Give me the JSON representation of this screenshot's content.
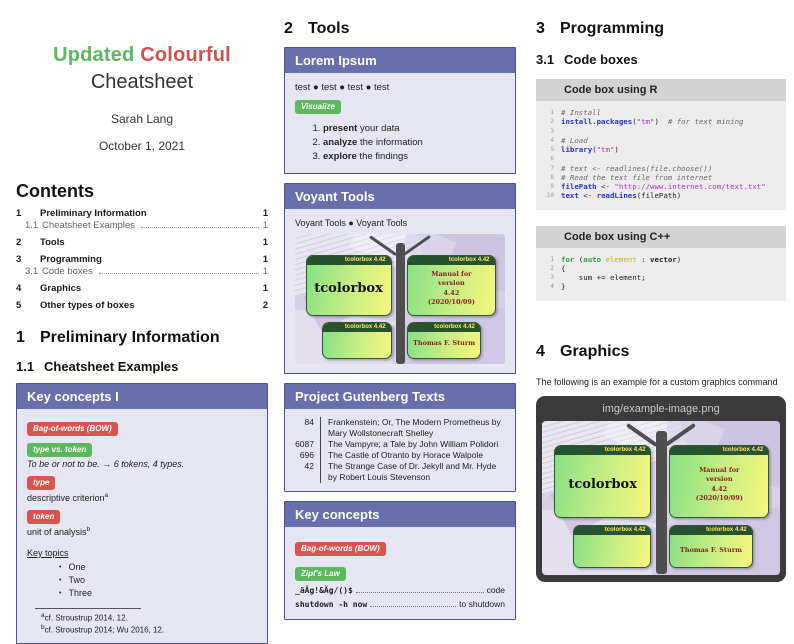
{
  "left": {
    "title": {
      "word1": "Updated",
      "word2": "Colourful",
      "line2": "Cheatsheet",
      "author": "Sarah Lang",
      "date": "October 1, 2021"
    },
    "contents": {
      "heading": "Contents",
      "entries": [
        {
          "num": "1",
          "label": "Preliminary Information",
          "page": "1",
          "level": 1
        },
        {
          "num": "1.1",
          "label": "Cheatsheet Examples",
          "page": "1",
          "level": 2
        },
        {
          "num": "2",
          "label": "Tools",
          "page": "1",
          "level": 1
        },
        {
          "num": "3",
          "label": "Programming",
          "page": "1",
          "level": 1
        },
        {
          "num": "3.1",
          "label": "Code boxes",
          "page": "1",
          "level": 2
        },
        {
          "num": "4",
          "label": "Graphics",
          "page": "1",
          "level": 1
        },
        {
          "num": "5",
          "label": "Other types of boxes",
          "page": "2",
          "level": 1
        }
      ]
    },
    "section": {
      "num": "1",
      "title": "Preliminary Information"
    },
    "subsection": {
      "num": "1.1",
      "title": "Cheatsheet Examples"
    },
    "key_concepts": {
      "title": "Key concepts I",
      "terms": [
        {
          "label": "Bag-of-words (BOW)",
          "color": "red",
          "desc": "",
          "italic": false,
          "sup": ""
        },
        {
          "label": "type vs. token",
          "color": "green",
          "desc": "To be or not to be. → 6 tokens, 4 types.",
          "italic": true,
          "sup": ""
        },
        {
          "label": "type",
          "color": "red",
          "desc": "descriptive criterion",
          "italic": false,
          "sup": "a"
        },
        {
          "label": "token",
          "color": "red",
          "desc": "unit of analysis",
          "italic": false,
          "sup": "b"
        }
      ],
      "topics_label": "Key topics",
      "topics": [
        "One",
        "Two",
        "Three"
      ],
      "footnotes": [
        {
          "sup": "a",
          "text": "cf. Stroustrup 2014, 12."
        },
        {
          "sup": "b",
          "text": "cf. Stroustrup 2014; Wu 2016, 12."
        }
      ]
    }
  },
  "middle": {
    "section": {
      "num": "2",
      "title": "Tools"
    },
    "lorem": {
      "title": "Lorem Ipsum",
      "test_line": "test ● test ● test ● test",
      "badge": "Visualize",
      "steps": [
        {
          "lead": "present",
          "rest": " your data"
        },
        {
          "lead": "analyze",
          "rest": " the information"
        },
        {
          "lead": "explore",
          "rest": " the findings"
        }
      ]
    },
    "voyant": {
      "title": "Voyant Tools",
      "line": "Voyant Tools ● Voyant Tools"
    },
    "gutenberg": {
      "title": "Project Gutenberg Texts",
      "items": [
        {
          "num": "84",
          "title": "Frankenstein; Or, The Modern Prometheus by Mary Wollstonecraft Shelley"
        },
        {
          "num": "6087",
          "title": "The Vampyre; a Tale by John William Polidori"
        },
        {
          "num": "696",
          "title": "The Castle of Otranto by Horace Walpole"
        },
        {
          "num": "42",
          "title": "The Strange Case of Dr. Jekyll and Mr. Hyde by Robert Louis Stevenson"
        }
      ]
    },
    "key_concepts": {
      "title": "Key concepts",
      "badges": [
        {
          "label": "Bag-of-words (BOW)",
          "color": "red"
        },
        {
          "label": "Zipf's Law",
          "color": "green"
        }
      ],
      "leader_lines": [
        {
          "left": "_äÄg!&Äg/()$",
          "right": "code"
        },
        {
          "left": "shutdown -h now",
          "right": "to shutdown"
        }
      ]
    }
  },
  "right": {
    "section": {
      "num": "3",
      "title": "Programming"
    },
    "subsection": {
      "num": "3.1",
      "title": "Code boxes"
    },
    "r_box": {
      "title": "Code box using R",
      "lines": [
        {
          "num": "1",
          "segs": [
            {
              "t": "# Install",
              "c": "com"
            }
          ]
        },
        {
          "num": "2",
          "segs": [
            {
              "t": "install.packages",
              "c": "kw"
            },
            {
              "t": "(",
              "c": ""
            },
            {
              "t": "\"tm\"",
              "c": "str"
            },
            {
              "t": ")",
              "c": ""
            },
            {
              "t": "  ",
              "c": ""
            },
            {
              "t": "# for text mining",
              "c": "com"
            }
          ]
        },
        {
          "num": "3",
          "segs": []
        },
        {
          "num": "4",
          "segs": [
            {
              "t": "# Load",
              "c": "com"
            }
          ]
        },
        {
          "num": "5",
          "segs": [
            {
              "t": "library",
              "c": "kw"
            },
            {
              "t": "(",
              "c": ""
            },
            {
              "t": "\"tm\"",
              "c": "str"
            },
            {
              "t": ")",
              "c": ""
            }
          ]
        },
        {
          "num": "6",
          "segs": []
        },
        {
          "num": "7",
          "segs": [
            {
              "t": "# text <- readlines(file.choose())",
              "c": "com"
            }
          ]
        },
        {
          "num": "8",
          "segs": [
            {
              "t": "# Read the text file from internet",
              "c": "com"
            }
          ]
        },
        {
          "num": "9",
          "segs": [
            {
              "t": "filePath",
              "c": "kw"
            },
            {
              "t": " <- ",
              "c": ""
            },
            {
              "t": "\"http://www.internet.com/text.txt\"",
              "c": "str"
            }
          ]
        },
        {
          "num": "10",
          "segs": [
            {
              "t": "text",
              "c": "kw"
            },
            {
              "t": " <- ",
              "c": ""
            },
            {
              "t": "readLines",
              "c": "kw"
            },
            {
              "t": "(filePath)",
              "c": ""
            }
          ]
        }
      ]
    },
    "cpp_box": {
      "title": "Code box using C++",
      "lines": [
        {
          "num": "1",
          "segs": [
            {
              "t": "for",
              "c": "kwg"
            },
            {
              "t": " (",
              "c": ""
            },
            {
              "t": "auto",
              "c": "kwg"
            },
            {
              "t": " ",
              "c": ""
            },
            {
              "t": "element",
              "c": "idy"
            },
            {
              "t": " : ",
              "c": ""
            },
            {
              "t": "vector",
              "c": "b"
            },
            {
              "t": ")",
              "c": ""
            }
          ]
        },
        {
          "num": "2",
          "segs": [
            {
              "t": "{",
              "c": ""
            }
          ]
        },
        {
          "num": "3",
          "segs": [
            {
              "t": "    sum += element;",
              "c": ""
            }
          ]
        },
        {
          "num": "4",
          "segs": [
            {
              "t": "}",
              "c": ""
            }
          ]
        }
      ]
    },
    "graphics": {
      "section": {
        "num": "4",
        "title": "Graphics"
      },
      "caption": "The following is an example for a custom graphics command",
      "img_label": "img/example-image.png"
    }
  },
  "tcb_image": {
    "box_header": "tcolorbox 4.42",
    "box1_title": "tcolorbox",
    "box2_lines": [
      "Manual for",
      "version",
      "4.42",
      "(2020/10/09)"
    ],
    "box4_text": "Thomas F. Sturm"
  },
  "colors": {
    "accent_purple": "#6770ad",
    "badge_red": "#d9534f",
    "badge_green": "#5cb85c",
    "title_green": "#5cb85c",
    "title_red": "#d0524e"
  }
}
